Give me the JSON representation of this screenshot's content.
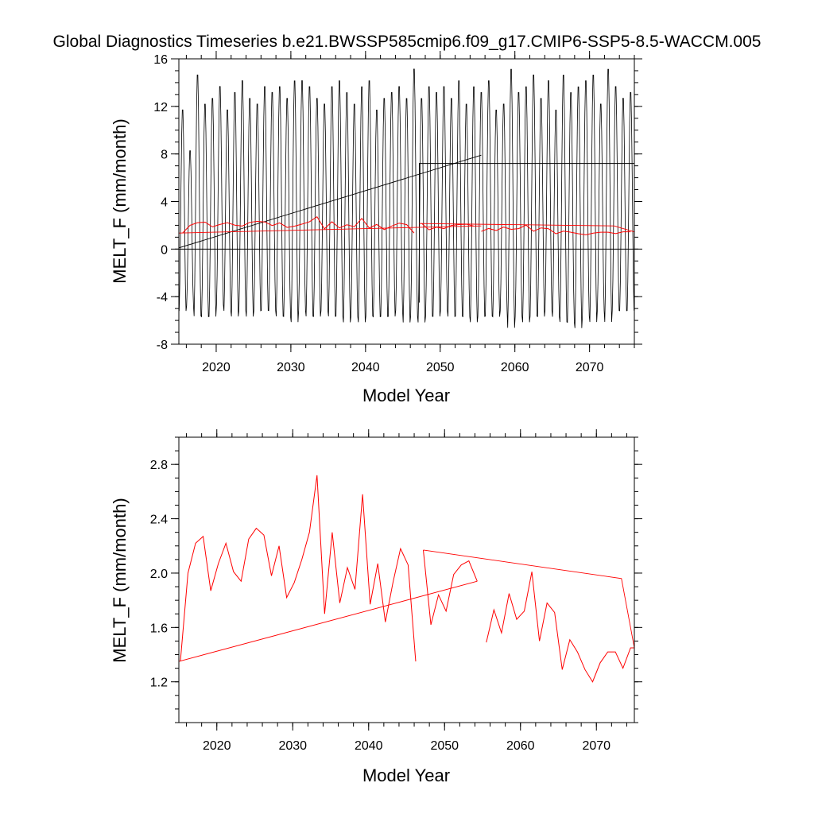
{
  "title": "Global Diagnostics Timeseries b.e21.BWSSP585cmip6.f09_g17.CMIP6-SSP5-8.5-WACCM.005",
  "chart_data": [
    {
      "type": "line",
      "xlabel": "Model Year",
      "ylabel": "MELT_F (mm/month)",
      "xlim": [
        2015,
        2076
      ],
      "ylim": [
        -8,
        16
      ],
      "x_ticks": [
        2020,
        2030,
        2040,
        2050,
        2060,
        2070
      ],
      "y_ticks": [
        -8,
        -4,
        0,
        4,
        8,
        12,
        16
      ],
      "zero_line": 0,
      "monthly_cycle": {
        "name": "monthly",
        "color": "#000000",
        "x_start": 2015,
        "annual_max": [
          12.0,
          8.5,
          15.0,
          12.5,
          13.0,
          14.0,
          12.0,
          13.5,
          14.5,
          13.0,
          12.5,
          14.0,
          13.5,
          14.0,
          13.0,
          14.5,
          14.5,
          14.0,
          13.0,
          12.5,
          14.0,
          14.5,
          13.5,
          12.5,
          14.0,
          14.5,
          12.0,
          13.0,
          13.5,
          14.0,
          13.0,
          15.5,
          13.0,
          14.0,
          13.5,
          14.0,
          13.0,
          14.5,
          12.5,
          14.0,
          13.5,
          14.5,
          12.0,
          12.5,
          15.5,
          13.5,
          14.0,
          15.0,
          13.0,
          14.5,
          12.0,
          15.0,
          13.5,
          14.0,
          14.5,
          15.0,
          12.5,
          15.5,
          14.0,
          13.0,
          13.5
        ],
        "annual_min": [
          -5.5,
          -5.0,
          -6.0,
          -6.0,
          -6.0,
          -5.0,
          -5.5,
          -6.0,
          -5.5,
          -6.0,
          -5.5,
          -5.5,
          -5.5,
          -6.0,
          -6.0,
          -6.5,
          -5.5,
          -6.0,
          -6.0,
          -5.5,
          -6.0,
          -6.0,
          -6.5,
          -6.0,
          -6.5,
          -6.0,
          -6.0,
          -6.0,
          -6.0,
          -5.5,
          -6.5,
          -6.0,
          -6.5,
          -6.0,
          -6.0,
          -5.5,
          -6.0,
          -6.0,
          -6.0,
          -6.5,
          -6.0,
          -6.0,
          -6.0,
          -5.5,
          -7.0,
          -6.0,
          -6.5,
          -6.0,
          -6.0,
          -5.5,
          -6.0,
          -6.5,
          -6.5,
          -7.0,
          -6.0,
          -6.5,
          -5.5,
          -6.5,
          -5.5,
          -5.5,
          -5.5
        ]
      },
      "segments": [
        {
          "color": "#000000",
          "x": [
            2015,
            2055.5
          ],
          "y": [
            0.1,
            7.9
          ]
        },
        {
          "color": "#000000",
          "x": [
            2047.2,
            2047.2,
            2076
          ],
          "y": [
            -4.5,
            7.2,
            7.2
          ]
        },
        {
          "color": "#ff0000",
          "x": [
            2015,
            2055.5
          ],
          "y": [
            1.35,
            1.95
          ]
        },
        {
          "color": "#ff0000",
          "x": [
            2047.2,
            2073.3,
            2076
          ],
          "y": [
            2.15,
            1.95,
            1.45
          ]
        }
      ],
      "series": [
        {
          "name": "annual",
          "color": "#ff0000",
          "x": [
            2015.5,
            2016.5,
            2017.5,
            2018.5,
            2019.5,
            2020.5,
            2021.5,
            2022.5,
            2023.5,
            2024.5,
            2025.5,
            2026.5,
            2027.5,
            2028.5,
            2029.5,
            2030.5,
            2031.5,
            2032.5,
            2033.5,
            2034.5,
            2035.5,
            2036.5,
            2037.5,
            2038.5,
            2039.5,
            2040.5,
            2041.5,
            2042.5,
            2043.5,
            2044.5,
            2045.5,
            2046.5
          ],
          "values": [
            1.35,
            2.0,
            2.22,
            2.27,
            1.87,
            2.07,
            2.22,
            2.01,
            1.94,
            2.25,
            2.33,
            2.28,
            1.98,
            2.2,
            1.82,
            1.93,
            2.1,
            2.3,
            2.72,
            1.7,
            2.3,
            1.78,
            2.04,
            1.88,
            2.58,
            1.77,
            2.07,
            1.64,
            1.93,
            2.18,
            2.06,
            1.35
          ]
        },
        {
          "name": "annual",
          "color": "#ff0000",
          "x": [
            2047.5,
            2048.5,
            2049.5,
            2050.5,
            2051.5,
            2052.5,
            2053.5,
            2054.5
          ],
          "values": [
            2.17,
            1.62,
            1.84,
            1.72,
            1.99,
            2.06,
            2.09,
            1.94
          ]
        },
        {
          "name": "annual",
          "color": "#ff0000",
          "x": [
            2055.5,
            2056.5,
            2057.5,
            2058.5,
            2059.5,
            2060.5,
            2061.5,
            2062.5,
            2063.5,
            2064.5,
            2065.5,
            2066.5,
            2067.5,
            2068.5,
            2069.5,
            2070.5,
            2071.5,
            2072.5,
            2073.5,
            2074.5,
            2075.5
          ],
          "values": [
            1.49,
            1.73,
            1.56,
            1.85,
            1.66,
            1.72,
            2.01,
            1.5,
            1.78,
            1.71,
            1.29,
            1.51,
            1.42,
            1.29,
            1.2,
            1.34,
            1.42,
            1.42,
            1.3,
            1.45,
            1.45
          ]
        }
      ]
    },
    {
      "type": "line",
      "xlabel": "Model Year",
      "ylabel": "MELT_F (mm/month)",
      "xlim": [
        2015,
        2075
      ],
      "ylim": [
        0.9,
        3.0
      ],
      "x_ticks": [
        2020,
        2030,
        2040,
        2050,
        2060,
        2070
      ],
      "y_ticks": [
        1.2,
        1.6,
        2.0,
        2.4,
        2.8
      ],
      "segments": [
        {
          "color": "#ff0000",
          "x": [
            2015,
            2054.3
          ],
          "y": [
            1.35,
            1.94
          ]
        },
        {
          "color": "#ff0000",
          "x": [
            2047.2,
            2073.3,
            2075
          ],
          "y": [
            2.17,
            1.96,
            1.45
          ]
        }
      ],
      "series": [
        {
          "name": "annual",
          "color": "#ff0000",
          "x": [
            2015.2,
            2016.2,
            2017.2,
            2018.2,
            2019.2,
            2020.2,
            2021.2,
            2022.2,
            2023.2,
            2024.2,
            2025.2,
            2026.2,
            2027.2,
            2028.2,
            2029.2,
            2030.2,
            2031.2,
            2032.2,
            2033.2,
            2034.2,
            2035.2,
            2036.2,
            2037.2,
            2038.2,
            2039.2,
            2040.2,
            2041.2,
            2042.2,
            2043.2,
            2044.2,
            2045.2,
            2046.2
          ],
          "values": [
            1.35,
            2.0,
            2.22,
            2.27,
            1.87,
            2.07,
            2.22,
            2.01,
            1.94,
            2.25,
            2.33,
            2.28,
            1.98,
            2.2,
            1.82,
            1.93,
            2.1,
            2.3,
            2.72,
            1.7,
            2.3,
            1.78,
            2.04,
            1.88,
            2.58,
            1.77,
            2.07,
            1.64,
            1.93,
            2.18,
            2.06,
            1.35
          ]
        },
        {
          "name": "annual",
          "color": "#ff0000",
          "x": [
            2047.2,
            2048.2,
            2049.2,
            2050.2,
            2051.2,
            2052.2,
            2053.2,
            2054.3
          ],
          "values": [
            2.17,
            1.62,
            1.84,
            1.72,
            1.99,
            2.06,
            2.09,
            1.94
          ]
        },
        {
          "name": "annual",
          "color": "#ff0000",
          "x": [
            2055.5,
            2056.5,
            2057.5,
            2058.5,
            2059.5,
            2060.5,
            2061.5,
            2062.5,
            2063.5,
            2064.5,
            2065.5,
            2066.5,
            2067.5,
            2068.5,
            2069.5,
            2070.5,
            2071.5,
            2072.5,
            2073.5,
            2074.5,
            2075
          ],
          "values": [
            1.49,
            1.73,
            1.56,
            1.85,
            1.66,
            1.72,
            2.01,
            1.5,
            1.78,
            1.71,
            1.29,
            1.51,
            1.42,
            1.29,
            1.2,
            1.34,
            1.42,
            1.42,
            1.3,
            1.45,
            1.45
          ]
        }
      ]
    }
  ]
}
